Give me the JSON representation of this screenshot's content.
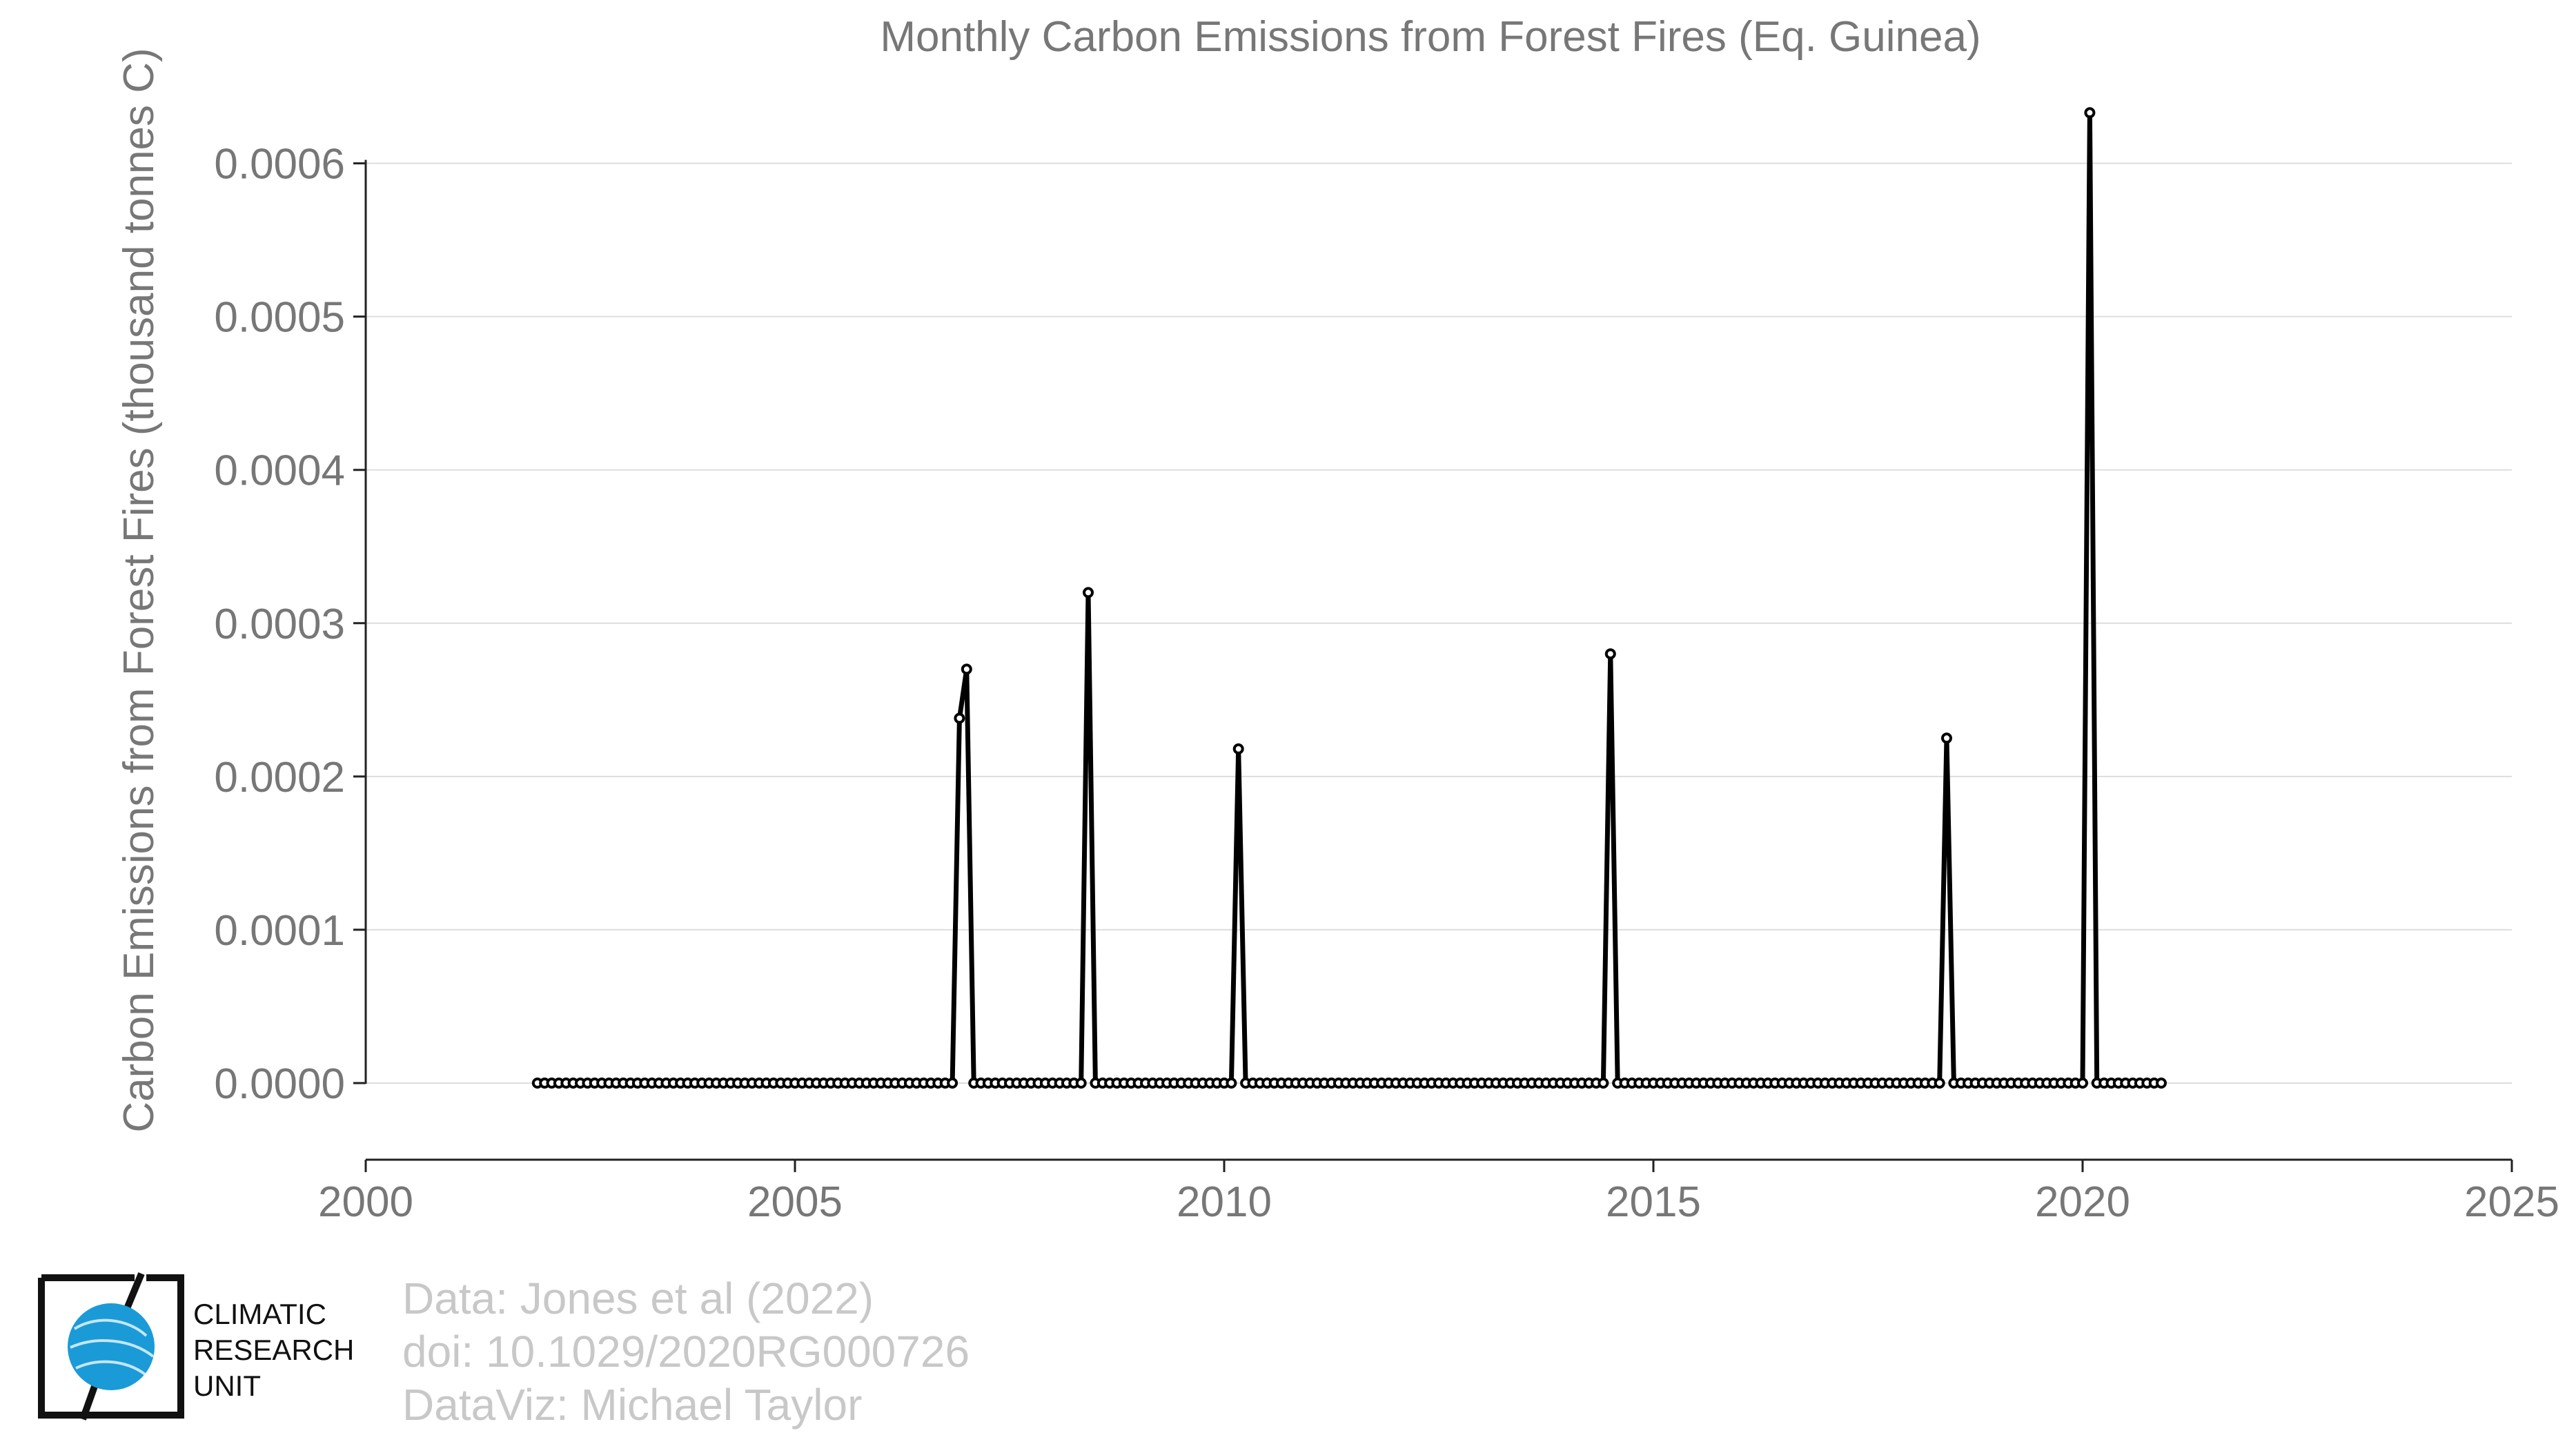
{
  "chart_data": {
    "type": "line",
    "title": "Monthly Carbon Emissions from Forest Fires (Eq. Guinea)",
    "xlabel": "",
    "ylabel": "Carbon Emissions from Forest Fires (thousand tonnes C)",
    "xlim": [
      2000,
      2025
    ],
    "ylim": [
      -5e-05,
      0.00063
    ],
    "xticks": [
      2000,
      2005,
      2010,
      2015,
      2020,
      2025
    ],
    "xtick_labels": [
      "2000",
      "2005",
      "2010",
      "2015",
      "2020",
      "2025"
    ],
    "yticks": [
      0,
      0.0001,
      0.0002,
      0.0003,
      0.0004,
      0.0005,
      0.0006
    ],
    "ytick_labels": [
      "0.0000",
      "0.0001",
      "0.0002",
      "0.0003",
      "0.0004",
      "0.0005",
      "0.0006"
    ],
    "grid": true,
    "colors": {
      "line": "#000000",
      "marker_fill": "#ffffff",
      "grid": "#dddddd",
      "text": "#777777"
    },
    "series": [
      {
        "start": "2002-01",
        "end": "2020-12",
        "frequency": "monthly",
        "default_value": 0,
        "nonzero": [
          {
            "month": "2006-12",
            "value": 0.000238
          },
          {
            "month": "2007-01",
            "value": 0.00027
          },
          {
            "month": "2008-06",
            "value": 0.00032
          },
          {
            "month": "2010-03",
            "value": 0.000218
          },
          {
            "month": "2014-07",
            "value": 0.00028
          },
          {
            "month": "2018-06",
            "value": 0.000225
          },
          {
            "month": "2020-02",
            "value": 0.000633
          }
        ]
      }
    ]
  },
  "credits": {
    "lines": [
      "Data: Jones et al (2022)",
      "doi: 10.1029/2020RG000726",
      "DataViz: Michael Taylor"
    ]
  },
  "logo": {
    "text_lines": [
      "CLIMATIC",
      "RESEARCH",
      "UNIT"
    ],
    "globe_color": "#1a9bd7"
  }
}
